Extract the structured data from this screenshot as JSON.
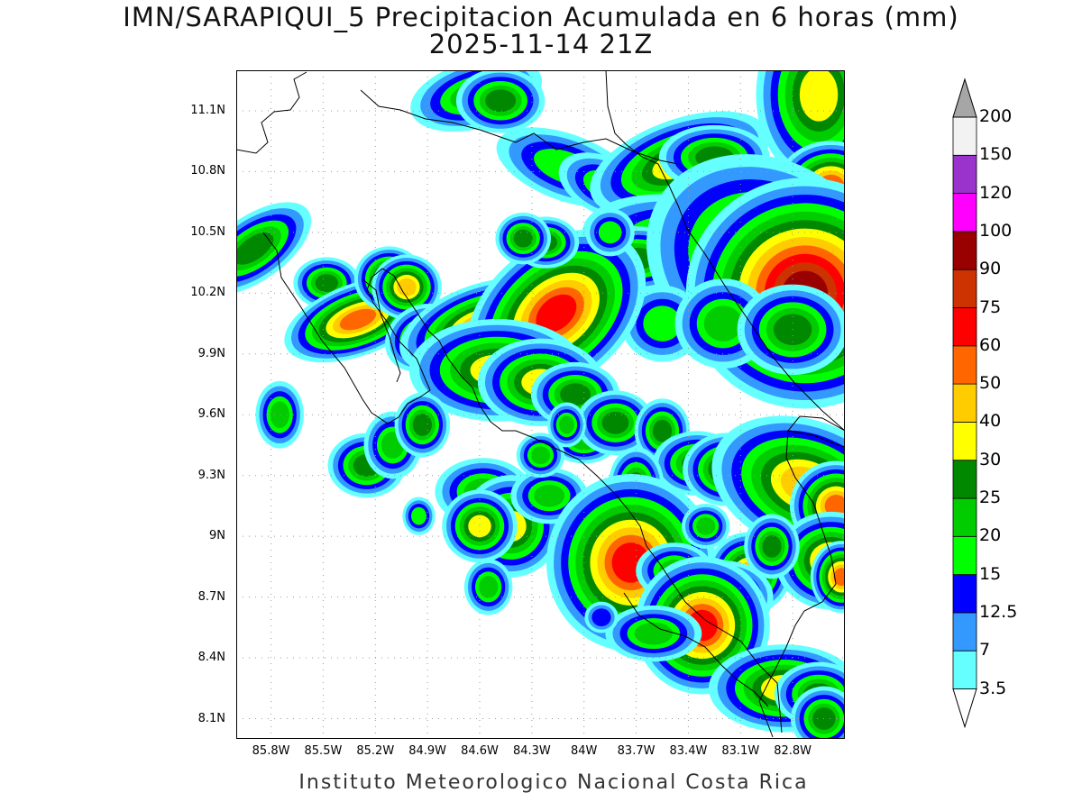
{
  "title": {
    "line1": "IMN/SARAPIQUI_5 Precipitacion Acumulada en 6 horas (mm)",
    "line2": "2025-11-14 21Z"
  },
  "footer": "Instituto Meteorologico Nacional Costa Rica",
  "map": {
    "lon_range": [
      -86.0,
      -82.5
    ],
    "lat_range": [
      8.0,
      11.3
    ],
    "lat_ticks": [
      {
        "value": 11.1,
        "label": "11.1N"
      },
      {
        "value": 10.8,
        "label": "10.8N"
      },
      {
        "value": 10.5,
        "label": "10.5N"
      },
      {
        "value": 10.2,
        "label": "10.2N"
      },
      {
        "value": 9.9,
        "label": "9.9N"
      },
      {
        "value": 9.6,
        "label": "9.6N"
      },
      {
        "value": 9.3,
        "label": "9.3N"
      },
      {
        "value": 9.0,
        "label": "9N"
      },
      {
        "value": 8.7,
        "label": "8.7N"
      },
      {
        "value": 8.4,
        "label": "8.4N"
      },
      {
        "value": 8.1,
        "label": "8.1N"
      }
    ],
    "lon_ticks": [
      {
        "value": -85.8,
        "label": "85.8W"
      },
      {
        "value": -85.5,
        "label": "85.5W"
      },
      {
        "value": -85.2,
        "label": "85.2W"
      },
      {
        "value": -84.9,
        "label": "84.9W"
      },
      {
        "value": -84.6,
        "label": "84.6W"
      },
      {
        "value": -84.3,
        "label": "84.3W"
      },
      {
        "value": -84.0,
        "label": "84W"
      },
      {
        "value": -83.7,
        "label": "83.7W"
      },
      {
        "value": -83.4,
        "label": "83.4W"
      },
      {
        "value": -83.1,
        "label": "83.1W"
      },
      {
        "value": -82.8,
        "label": "82.8W"
      }
    ],
    "grid": "dotted"
  },
  "colorbar": {
    "levels": [
      "3.5",
      "7",
      "12.5",
      "15",
      "20",
      "25",
      "30",
      "40",
      "50",
      "60",
      "75",
      "90",
      "100",
      "120",
      "150",
      "200"
    ],
    "colors": [
      "#66ffff",
      "#3399ff",
      "#0000ff",
      "#00ff00",
      "#00cc00",
      "#008800",
      "#ffff00",
      "#ffcc00",
      "#ff6600",
      "#ff0000",
      "#cc3300",
      "#990000",
      "#ff00ff",
      "#9933cc",
      "#f2f2f2",
      "#a6a6a6"
    ]
  },
  "precip_cells": [
    {
      "lon": -84.62,
      "lat": 11.18,
      "rx": 0.14,
      "ry": 0.06,
      "rot": -15,
      "peak": 5
    },
    {
      "lon": -84.48,
      "lat": 11.15,
      "rx": 0.08,
      "ry": 0.05,
      "rot": 0,
      "peak": 6
    },
    {
      "lon": -84.1,
      "lat": 10.82,
      "rx": 0.18,
      "ry": 0.07,
      "rot": 20,
      "peak": 4
    },
    {
      "lon": -83.88,
      "lat": 10.73,
      "rx": 0.12,
      "ry": 0.06,
      "rot": 25,
      "peak": 4
    },
    {
      "lon": -83.45,
      "lat": 10.84,
      "rx": 0.15,
      "ry": 0.06,
      "rot": -20,
      "peak": 7
    },
    {
      "lon": -83.25,
      "lat": 10.87,
      "rx": 0.1,
      "ry": 0.05,
      "rot": 0,
      "peak": 6
    },
    {
      "lon": -82.65,
      "lat": 11.18,
      "rx": 0.1,
      "ry": 0.12,
      "rot": 0,
      "peak": 7
    },
    {
      "lon": -82.58,
      "lat": 10.73,
      "rx": 0.07,
      "ry": 0.05,
      "rot": 0,
      "peak": 9
    },
    {
      "lon": -83.38,
      "lat": 10.42,
      "rx": 0.2,
      "ry": 0.08,
      "rot": 10,
      "peak": 6
    },
    {
      "lon": -83.7,
      "lat": 10.37,
      "rx": 0.1,
      "ry": 0.05,
      "rot": 0,
      "peak": 6
    },
    {
      "lon": -82.95,
      "lat": 10.35,
      "rx": 0.2,
      "ry": 0.14,
      "rot": 30,
      "peak": 7
    },
    {
      "lon": -82.73,
      "lat": 10.2,
      "rx": 0.12,
      "ry": 0.1,
      "rot": 0,
      "peak": 12
    },
    {
      "lon": -83.55,
      "lat": 10.05,
      "rx": 0.1,
      "ry": 0.08,
      "rot": 0,
      "peak": 4
    },
    {
      "lon": -83.2,
      "lat": 10.05,
      "rx": 0.1,
      "ry": 0.08,
      "rot": 0,
      "peak": 5
    },
    {
      "lon": -82.8,
      "lat": 10.02,
      "rx": 0.1,
      "ry": 0.07,
      "rot": 0,
      "peak": 6
    },
    {
      "lon": -85.9,
      "lat": 10.42,
      "rx": 0.12,
      "ry": 0.05,
      "rot": -35,
      "peak": 6
    },
    {
      "lon": -85.48,
      "lat": 10.25,
      "rx": 0.06,
      "ry": 0.04,
      "rot": 0,
      "peak": 6
    },
    {
      "lon": -85.3,
      "lat": 10.07,
      "rx": 0.1,
      "ry": 0.04,
      "rot": -20,
      "peak": 9
    },
    {
      "lon": -85.12,
      "lat": 10.27,
      "rx": 0.05,
      "ry": 0.04,
      "rot": 0,
      "peak": 8
    },
    {
      "lon": -85.02,
      "lat": 10.23,
      "rx": 0.05,
      "ry": 0.04,
      "rot": 0,
      "peak": 8
    },
    {
      "lon": -84.93,
      "lat": 9.98,
      "rx": 0.07,
      "ry": 0.05,
      "rot": -30,
      "peak": 6
    },
    {
      "lon": -84.6,
      "lat": 10.04,
      "rx": 0.12,
      "ry": 0.05,
      "rot": -20,
      "peak": 8
    },
    {
      "lon": -84.16,
      "lat": 10.1,
      "rx": 0.12,
      "ry": 0.07,
      "rot": -40,
      "peak": 10
    },
    {
      "lon": -84.5,
      "lat": 9.82,
      "rx": 0.14,
      "ry": 0.07,
      "rot": 0,
      "peak": 7
    },
    {
      "lon": -84.25,
      "lat": 9.76,
      "rx": 0.1,
      "ry": 0.06,
      "rot": 0,
      "peak": 7
    },
    {
      "lon": -84.05,
      "lat": 9.7,
      "rx": 0.08,
      "ry": 0.05,
      "rot": 0,
      "peak": 6
    },
    {
      "lon": -84.22,
      "lat": 10.45,
      "rx": 0.06,
      "ry": 0.04,
      "rot": 0,
      "peak": 6
    },
    {
      "lon": -84.35,
      "lat": 10.47,
      "rx": 0.05,
      "ry": 0.04,
      "rot": 0,
      "peak": 6
    },
    {
      "lon": -85.75,
      "lat": 9.6,
      "rx": 0.05,
      "ry": 0.06,
      "rot": 0,
      "peak": 5
    },
    {
      "lon": -85.25,
      "lat": 9.35,
      "rx": 0.07,
      "ry": 0.05,
      "rot": 0,
      "peak": 6
    },
    {
      "lon": -85.1,
      "lat": 9.45,
      "rx": 0.06,
      "ry": 0.06,
      "rot": 0,
      "peak": 5
    },
    {
      "lon": -84.93,
      "lat": 9.55,
      "rx": 0.05,
      "ry": 0.05,
      "rot": 0,
      "peak": 6
    },
    {
      "lon": -84.58,
      "lat": 9.22,
      "rx": 0.1,
      "ry": 0.06,
      "rot": 0,
      "peak": 5
    },
    {
      "lon": -84.42,
      "lat": 9.05,
      "rx": 0.08,
      "ry": 0.07,
      "rot": 0,
      "peak": 7
    },
    {
      "lon": -84.6,
      "lat": 9.05,
      "rx": 0.06,
      "ry": 0.05,
      "rot": 0,
      "peak": 7
    },
    {
      "lon": -84.2,
      "lat": 9.2,
      "rx": 0.08,
      "ry": 0.05,
      "rot": 0,
      "peak": 5
    },
    {
      "lon": -84.0,
      "lat": 9.47,
      "rx": 0.07,
      "ry": 0.04,
      "rot": 0,
      "peak": 5
    },
    {
      "lon": -83.82,
      "lat": 9.56,
      "rx": 0.07,
      "ry": 0.05,
      "rot": 0,
      "peak": 6
    },
    {
      "lon": -83.55,
      "lat": 9.52,
      "rx": 0.05,
      "ry": 0.05,
      "rot": 0,
      "peak": 6
    },
    {
      "lon": -83.35,
      "lat": 9.36,
      "rx": 0.08,
      "ry": 0.05,
      "rot": 0,
      "peak": 6
    },
    {
      "lon": -83.18,
      "lat": 9.33,
      "rx": 0.07,
      "ry": 0.05,
      "rot": 0,
      "peak": 7
    },
    {
      "lon": -83.7,
      "lat": 9.25,
      "rx": 0.05,
      "ry": 0.06,
      "rot": 0,
      "peak": 6
    },
    {
      "lon": -83.73,
      "lat": 8.87,
      "rx": 0.1,
      "ry": 0.09,
      "rot": 0,
      "peak": 10
    },
    {
      "lon": -83.48,
      "lat": 8.83,
      "rx": 0.08,
      "ry": 0.05,
      "rot": 0,
      "peak": 5
    },
    {
      "lon": -83.05,
      "lat": 8.82,
      "rx": 0.06,
      "ry": 0.05,
      "rot": 0,
      "peak": 8
    },
    {
      "lon": -83.2,
      "lat": 8.7,
      "rx": 0.08,
      "ry": 0.05,
      "rot": 0,
      "peak": 7
    },
    {
      "lon": -83.32,
      "lat": 8.56,
      "rx": 0.08,
      "ry": 0.07,
      "rot": 0,
      "peak": 10
    },
    {
      "lon": -83.6,
      "lat": 8.52,
      "rx": 0.1,
      "ry": 0.05,
      "rot": 0,
      "peak": 5
    },
    {
      "lon": -82.85,
      "lat": 8.25,
      "rx": 0.12,
      "ry": 0.06,
      "rot": 0,
      "peak": 7
    },
    {
      "lon": -82.65,
      "lat": 8.22,
      "rx": 0.08,
      "ry": 0.05,
      "rot": 0,
      "peak": 6
    },
    {
      "lon": -82.62,
      "lat": 8.1,
      "rx": 0.06,
      "ry": 0.05,
      "rot": 0,
      "peak": 6
    },
    {
      "lon": -82.72,
      "lat": 9.25,
      "rx": 0.14,
      "ry": 0.08,
      "rot": 20,
      "peak": 8
    },
    {
      "lon": -82.55,
      "lat": 9.15,
      "rx": 0.06,
      "ry": 0.05,
      "rot": 0,
      "peak": 9
    },
    {
      "lon": -82.58,
      "lat": 8.88,
      "rx": 0.08,
      "ry": 0.06,
      "rot": 0,
      "peak": 8
    },
    {
      "lon": -82.52,
      "lat": 8.8,
      "rx": 0.04,
      "ry": 0.04,
      "rot": 0,
      "peak": 9
    },
    {
      "lon": -84.95,
      "lat": 9.1,
      "rx": 0.04,
      "ry": 0.04,
      "rot": 0,
      "peak": 4
    },
    {
      "lon": -84.55,
      "lat": 8.75,
      "rx": 0.05,
      "ry": 0.05,
      "rot": 0,
      "peak": 5
    },
    {
      "lon": -83.9,
      "lat": 8.6,
      "rx": 0.05,
      "ry": 0.04,
      "rot": 0,
      "peak": 3
    },
    {
      "lon": -84.25,
      "lat": 9.4,
      "rx": 0.05,
      "ry": 0.04,
      "rot": 0,
      "peak": 5
    },
    {
      "lon": -83.85,
      "lat": 10.5,
      "rx": 0.06,
      "ry": 0.05,
      "rot": 0,
      "peak": 4
    },
    {
      "lon": -84.1,
      "lat": 9.55,
      "rx": 0.04,
      "ry": 0.04,
      "rot": 0,
      "peak": 5
    },
    {
      "lon": -83.3,
      "lat": 9.05,
      "rx": 0.05,
      "ry": 0.04,
      "rot": 0,
      "peak": 5
    },
    {
      "lon": -82.92,
      "lat": 8.95,
      "rx": 0.05,
      "ry": 0.05,
      "rot": 0,
      "peak": 6
    }
  ]
}
